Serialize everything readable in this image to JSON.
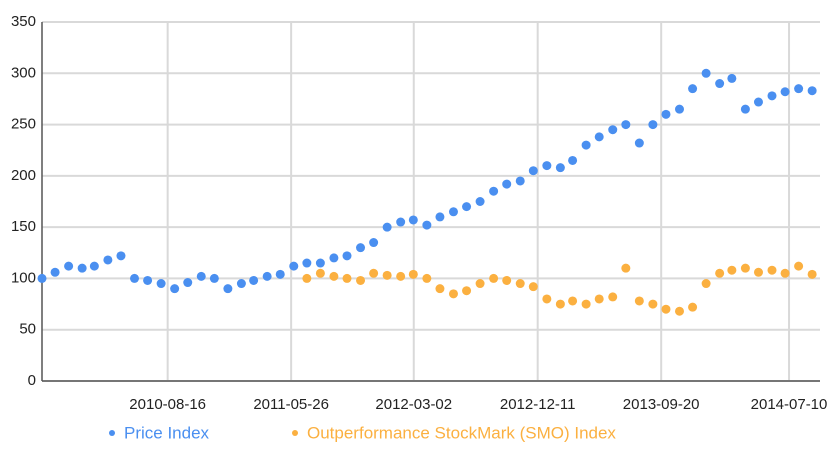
{
  "chart_data": {
    "type": "scatter",
    "xlim": [
      "2009-11-01",
      "2014-09-19"
    ],
    "xticks": [
      "2010-08-16",
      "2011-05-26",
      "2012-03-02",
      "2012-12-11",
      "2013-09-20",
      "2014-07-10"
    ],
    "ylim": [
      0,
      350
    ],
    "yticks": [
      0,
      50,
      100,
      150,
      200,
      250,
      300,
      350
    ],
    "grid": true,
    "legend": "bottom",
    "series": [
      {
        "name": "Price Index",
        "color": "#4a8ff0",
        "x": [
          "2009-11-01",
          "2009-12-01",
          "2010-01-01",
          "2010-02-01",
          "2010-03-01",
          "2010-04-01",
          "2010-05-01",
          "2010-06-01",
          "2010-07-01",
          "2010-08-01",
          "2010-09-01",
          "2010-10-01",
          "2010-11-01",
          "2010-12-01",
          "2011-01-01",
          "2011-02-01",
          "2011-03-01",
          "2011-04-01",
          "2011-05-01",
          "2011-06-01",
          "2011-07-01",
          "2011-08-01",
          "2011-09-01",
          "2011-10-01",
          "2011-11-01",
          "2011-12-01",
          "2012-01-01",
          "2012-02-01",
          "2012-03-01",
          "2012-04-01",
          "2012-05-01",
          "2012-06-01",
          "2012-07-01",
          "2012-08-01",
          "2012-09-01",
          "2012-10-01",
          "2012-11-01",
          "2012-12-01",
          "2013-01-01",
          "2013-02-01",
          "2013-03-01",
          "2013-04-01",
          "2013-05-01",
          "2013-06-01",
          "2013-07-01",
          "2013-08-01",
          "2013-09-01",
          "2013-10-01",
          "2013-11-01",
          "2013-12-01",
          "2014-01-01",
          "2014-02-01",
          "2014-03-01",
          "2014-04-01",
          "2014-05-01",
          "2014-06-01",
          "2014-07-01",
          "2014-08-01",
          "2014-09-01"
        ],
        "values": [
          100,
          106,
          112,
          110,
          112,
          118,
          122,
          100,
          98,
          95,
          90,
          96,
          102,
          100,
          90,
          95,
          98,
          102,
          104,
          112,
          115,
          115,
          120,
          122,
          130,
          135,
          150,
          155,
          157,
          152,
          160,
          165,
          170,
          175,
          185,
          192,
          195,
          205,
          210,
          208,
          215,
          230,
          238,
          245,
          250,
          232,
          250,
          260,
          265,
          285,
          300,
          290,
          295,
          265,
          272,
          278,
          282,
          285,
          283
        ]
      },
      {
        "name": "Outperformance StockMark (SMO) Index",
        "color": "#fbb040",
        "x": [
          "2011-07-01",
          "2011-08-01",
          "2011-09-01",
          "2011-10-01",
          "2011-11-01",
          "2011-12-01",
          "2012-01-01",
          "2012-02-01",
          "2012-03-01",
          "2012-04-01",
          "2012-05-01",
          "2012-06-01",
          "2012-07-01",
          "2012-08-01",
          "2012-09-01",
          "2012-10-01",
          "2012-11-01",
          "2012-12-01",
          "2013-01-01",
          "2013-02-01",
          "2013-03-01",
          "2013-04-01",
          "2013-05-01",
          "2013-06-01",
          "2013-07-01",
          "2013-08-01",
          "2013-09-01",
          "2013-10-01",
          "2013-11-01",
          "2013-12-01",
          "2014-01-01",
          "2014-02-01",
          "2014-03-01",
          "2014-04-01",
          "2014-05-01",
          "2014-06-01",
          "2014-07-01",
          "2014-08-01",
          "2014-09-01"
        ],
        "values": [
          100,
          105,
          102,
          100,
          98,
          105,
          103,
          102,
          104,
          100,
          90,
          85,
          88,
          95,
          100,
          98,
          95,
          92,
          80,
          75,
          78,
          75,
          80,
          82,
          110,
          78,
          75,
          70,
          68,
          72,
          95,
          105,
          108,
          110,
          106,
          108,
          105,
          112,
          104
        ]
      }
    ]
  }
}
